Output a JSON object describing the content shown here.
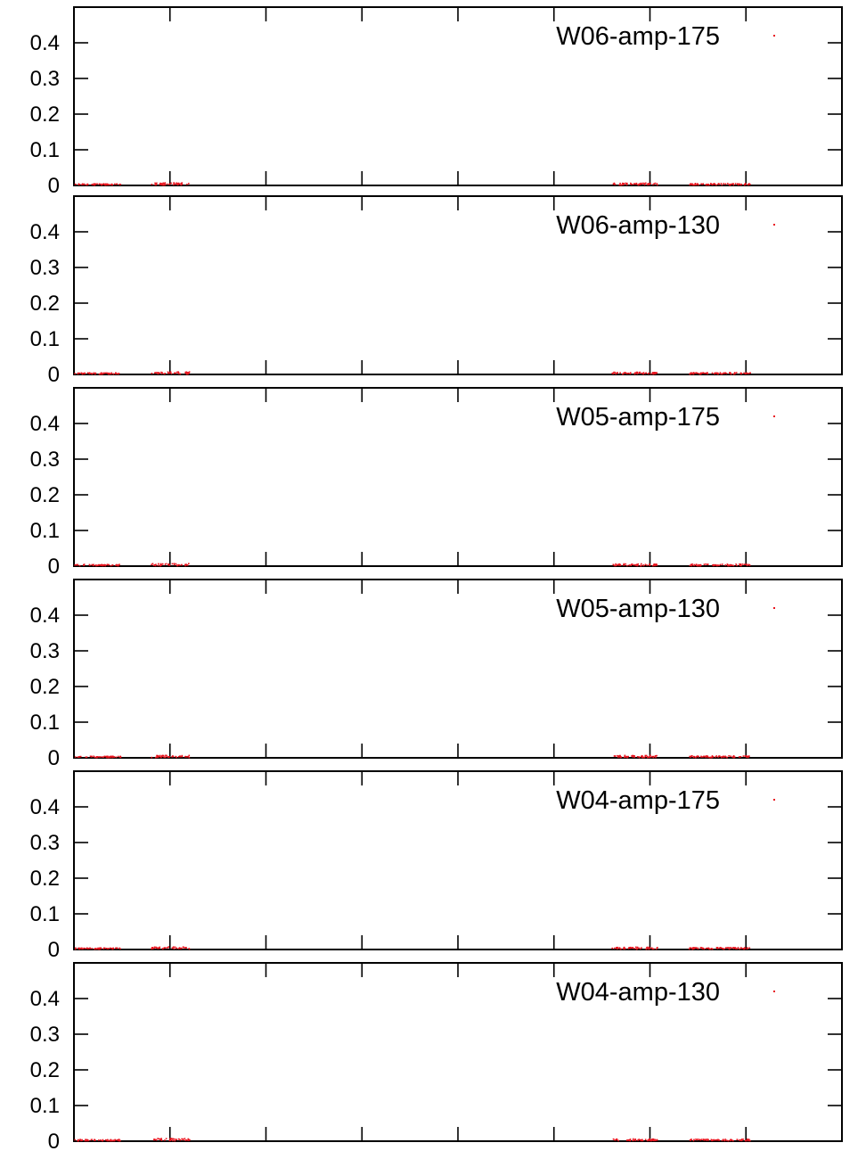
{
  "chart_data": [
    {
      "type": "scatter",
      "ylim": [
        0,
        0.5
      ],
      "yticks": [
        "0",
        "0.1",
        "0.2",
        "0.3",
        "0.4"
      ],
      "x_tick_count": 8,
      "legend_position": "top-right",
      "series": [
        {
          "name": "W06-amp-175",
          "color": "#e8141e",
          "clusters": [
            [
              0.0,
              0.06,
              0.004
            ],
            [
              0.1,
              0.15,
              0.007
            ],
            [
              0.7,
              0.76,
              0.006
            ],
            [
              0.8,
              0.88,
              0.005
            ]
          ]
        }
      ]
    },
    {
      "type": "scatter",
      "ylim": [
        0,
        0.5
      ],
      "yticks": [
        "0",
        "0.1",
        "0.2",
        "0.3",
        "0.4"
      ],
      "x_tick_count": 8,
      "legend_position": "top-right",
      "series": [
        {
          "name": "W06-amp-130",
          "color": "#e8141e",
          "clusters": [
            [
              0.0,
              0.06,
              0.004
            ],
            [
              0.1,
              0.15,
              0.007
            ],
            [
              0.7,
              0.76,
              0.006
            ],
            [
              0.8,
              0.88,
              0.005
            ]
          ]
        }
      ]
    },
    {
      "type": "scatter",
      "ylim": [
        0,
        0.5
      ],
      "yticks": [
        "0",
        "0.1",
        "0.2",
        "0.3",
        "0.4"
      ],
      "x_tick_count": 8,
      "legend_position": "top-right",
      "series": [
        {
          "name": "W05-amp-175",
          "color": "#e8141e",
          "clusters": [
            [
              0.0,
              0.06,
              0.004
            ],
            [
              0.1,
              0.15,
              0.007
            ],
            [
              0.7,
              0.76,
              0.006
            ],
            [
              0.8,
              0.88,
              0.005
            ]
          ]
        }
      ]
    },
    {
      "type": "scatter",
      "ylim": [
        0,
        0.5
      ],
      "yticks": [
        "0",
        "0.1",
        "0.2",
        "0.3",
        "0.4"
      ],
      "x_tick_count": 8,
      "legend_position": "top-right",
      "series": [
        {
          "name": "W05-amp-130",
          "color": "#e8141e",
          "clusters": [
            [
              0.0,
              0.06,
              0.004
            ],
            [
              0.1,
              0.15,
              0.007
            ],
            [
              0.7,
              0.76,
              0.006
            ],
            [
              0.8,
              0.88,
              0.005
            ]
          ]
        }
      ]
    },
    {
      "type": "scatter",
      "ylim": [
        0,
        0.5
      ],
      "yticks": [
        "0",
        "0.1",
        "0.2",
        "0.3",
        "0.4"
      ],
      "x_tick_count": 8,
      "legend_position": "top-right",
      "series": [
        {
          "name": "W04-amp-175",
          "color": "#e8141e",
          "clusters": [
            [
              0.0,
              0.06,
              0.004
            ],
            [
              0.1,
              0.15,
              0.007
            ],
            [
              0.7,
              0.76,
              0.006
            ],
            [
              0.8,
              0.88,
              0.005
            ]
          ]
        }
      ]
    },
    {
      "type": "scatter",
      "ylim": [
        0,
        0.5
      ],
      "yticks": [
        "0",
        "0.1",
        "0.2",
        "0.3",
        "0.4"
      ],
      "x_tick_count": 8,
      "legend_position": "top-right",
      "series": [
        {
          "name": "W04-amp-130",
          "color": "#e8141e",
          "clusters": [
            [
              0.0,
              0.06,
              0.004
            ],
            [
              0.1,
              0.15,
              0.007
            ],
            [
              0.7,
              0.76,
              0.006
            ],
            [
              0.8,
              0.88,
              0.005
            ]
          ]
        }
      ]
    }
  ]
}
